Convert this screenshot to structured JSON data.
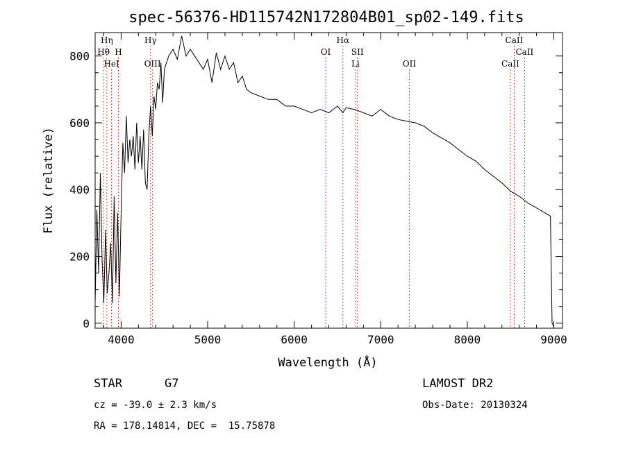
{
  "chart_data": {
    "type": "line",
    "title": "spec-56376-HD115742N172804B01_sp02-149.fits",
    "xlabel": "Wavelength (Å)",
    "ylabel": "Flux (relative)",
    "xlim": [
      3700,
      9100
    ],
    "ylim": [
      -15,
      870
    ],
    "x_ticks": [
      4000,
      5000,
      6000,
      7000,
      8000,
      9000
    ],
    "y_ticks": [
      0,
      200,
      400,
      600,
      800
    ],
    "grid": false,
    "series": [
      {
        "x": [
          3700,
          3720,
          3740,
          3760,
          3780,
          3800,
          3820,
          3840,
          3860,
          3880,
          3900,
          3920,
          3940,
          3960,
          3980,
          4000,
          4020,
          4040,
          4060,
          4080,
          4100,
          4120,
          4140,
          4160,
          4180,
          4200,
          4220,
          4240,
          4260,
          4280,
          4300,
          4320,
          4340,
          4360,
          4380,
          4400,
          4420,
          4440,
          4460,
          4480,
          4500,
          4550,
          4600,
          4650,
          4700,
          4750,
          4800,
          4850,
          4900,
          4950,
          5000,
          5050,
          5100,
          5150,
          5200,
          5250,
          5300,
          5350,
          5400,
          5450,
          5500,
          5600,
          5700,
          5800,
          5900,
          6000,
          6100,
          6200,
          6300,
          6400,
          6500,
          6563,
          6600,
          6700,
          6800,
          6900,
          7000,
          7100,
          7200,
          7300,
          7400,
          7500,
          7600,
          7700,
          7800,
          7900,
          8000,
          8100,
          8200,
          8300,
          8400,
          8500,
          8600,
          8700,
          8800,
          8900,
          8960,
          8980,
          9000
        ],
        "y": [
          60,
          340,
          150,
          450,
          190,
          60,
          280,
          90,
          150,
          240,
          60,
          380,
          120,
          330,
          80,
          330,
          540,
          450,
          620,
          480,
          550,
          500,
          560,
          460,
          600,
          480,
          560,
          460,
          580,
          420,
          400,
          560,
          650,
          560,
          680,
          640,
          720,
          700,
          780,
          660,
          760,
          800,
          820,
          790,
          860,
          800,
          820,
          800,
          780,
          760,
          790,
          720,
          810,
          760,
          800,
          760,
          780,
          720,
          740,
          700,
          690,
          680,
          670,
          670,
          650,
          650,
          640,
          630,
          640,
          630,
          650,
          630,
          645,
          640,
          630,
          620,
          640,
          620,
          610,
          605,
          600,
          590,
          570,
          555,
          540,
          520,
          500,
          485,
          460,
          440,
          420,
          395,
          380,
          360,
          345,
          330,
          320,
          0,
          -10
        ]
      }
    ],
    "line_markers": [
      {
        "label": "Hη",
        "x": 3835,
        "row": 1
      },
      {
        "label": "Hθ",
        "x": 3797,
        "row": 2
      },
      {
        "label": "H",
        "x": 3969,
        "row": 2
      },
      {
        "label": "HeI",
        "x": 3889,
        "row": 3
      },
      {
        "label": "Hγ",
        "x": 4340,
        "row": 1
      },
      {
        "label": "OIII",
        "x": 4363,
        "row": 3
      },
      {
        "label": "Hα",
        "x": 6563,
        "row": 1
      },
      {
        "label": "OI",
        "x": 6364,
        "row": 2
      },
      {
        "label": "SII",
        "x": 6731,
        "row": 2
      },
      {
        "label": "Li",
        "x": 6708,
        "row": 3
      },
      {
        "label": "OII",
        "x": 7330,
        "row": 3
      },
      {
        "label": "CaII",
        "x": 8542,
        "row": 1
      },
      {
        "label": "CaII",
        "x": 8662,
        "row": 2
      },
      {
        "label": "CaII",
        "x": 8498,
        "row": 3
      }
    ]
  },
  "info": {
    "object_class": "STAR",
    "subclass": "G7",
    "survey": "LAMOST DR2",
    "cz": "cz = -39.0 ± 2.3 km/s",
    "obs_date": "Obs-Date: 20130324",
    "coords": "RA = 178.14814, DEC =  15.75878"
  }
}
